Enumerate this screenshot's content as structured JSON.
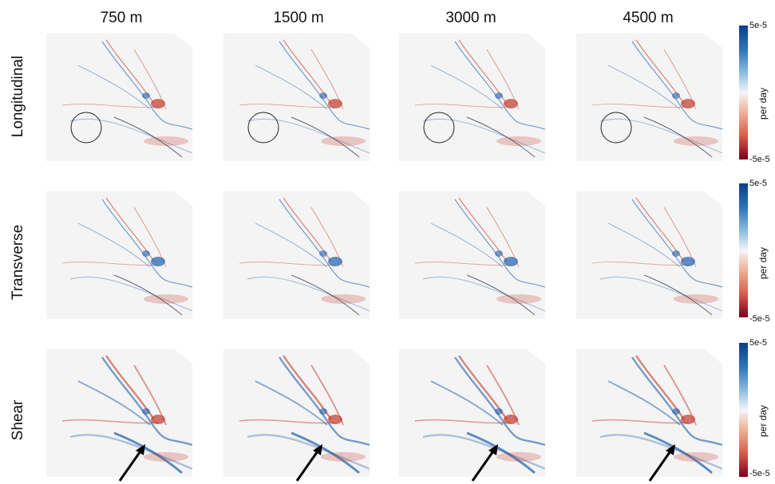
{
  "columns": [
    "750 m",
    "1500 m",
    "3000 m",
    "4500 m"
  ],
  "rows": [
    "Longitudinal",
    "Transverse",
    "Shear"
  ],
  "colorbars": [
    {
      "top": "5e-5",
      "bottom": "-5e-5",
      "unit": "per day"
    },
    {
      "top": "5e-5",
      "bottom": "-5e-5",
      "unit": "per day"
    },
    {
      "top": "5e-5",
      "bottom": "-5e-5",
      "unit": "per day"
    }
  ],
  "colors": {
    "positive": "#1f5fa8",
    "negative": "#c0392b",
    "neutral": "#f7f7f7"
  }
}
